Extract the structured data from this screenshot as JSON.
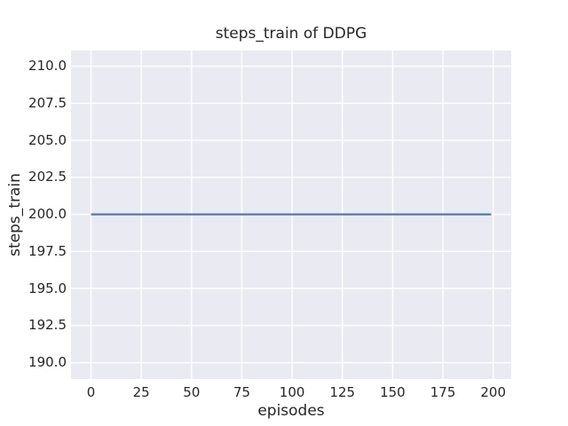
{
  "chart_data": {
    "type": "line",
    "title": "steps_train of DDPG",
    "xlabel": "episodes",
    "ylabel": "steps_train",
    "xlim": [
      -9.95,
      208.95
    ],
    "ylim": [
      188.9,
      211.05
    ],
    "xtick_values": [
      0,
      25,
      50,
      75,
      100,
      125,
      150,
      175,
      200
    ],
    "xtick_labels": [
      "0",
      "25",
      "50",
      "75",
      "100",
      "125",
      "150",
      "175",
      "200"
    ],
    "ytick_values": [
      190.0,
      192.5,
      195.0,
      197.5,
      200.0,
      202.5,
      205.0,
      207.5,
      210.0
    ],
    "ytick_labels": [
      "190.0",
      "192.5",
      "195.0",
      "197.5",
      "200.0",
      "202.5",
      "205.0",
      "207.5",
      "210.0"
    ],
    "grid": true,
    "legend_visible": false,
    "series": [
      {
        "name": "steps_train",
        "color": "#4C72B0",
        "x": [
          0,
          199
        ],
        "y": [
          200,
          200
        ],
        "description": "constant value 200 across all episodes 0-199"
      }
    ],
    "colors": {
      "figure_background": "#ffffff",
      "plot_background": "#EAEAF2",
      "grid_color": "#ffffff",
      "text_color": "#262626"
    }
  }
}
